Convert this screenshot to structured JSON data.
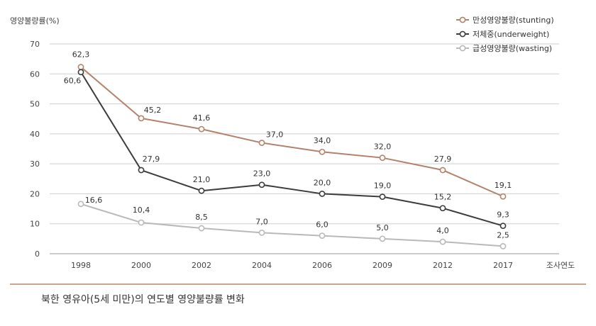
{
  "chart_data": {
    "type": "line",
    "ylabel": "영양불량률(%)",
    "xlabel": "조사연도",
    "categories": [
      "1998",
      "2000",
      "2002",
      "2004",
      "2006",
      "2009",
      "2012",
      "2017"
    ],
    "ylim": [
      0,
      70
    ],
    "yticks": [
      "0",
      "10",
      "20",
      "30",
      "40",
      "50",
      "60",
      "70"
    ],
    "grid": true,
    "legend_position": "top-right",
    "series": [
      {
        "name": "만성영양불량(stunting)",
        "color": "#b4826a",
        "values": [
          62.3,
          45.2,
          41.6,
          37.0,
          34.0,
          32.0,
          27.9,
          19.1
        ],
        "labels": [
          "62,3",
          "45,2",
          "41,6",
          "37,0",
          "34,0",
          "32,0",
          "27,9",
          "19,1"
        ]
      },
      {
        "name": "저체중(underweight)",
        "color": "#3c3c3c",
        "values": [
          60.6,
          27.9,
          21.0,
          23.0,
          20.0,
          19.0,
          15.2,
          9.3
        ],
        "labels": [
          "60,6",
          "27,9",
          "21,0",
          "23,0",
          "20,0",
          "19,0",
          "15,2",
          "9,3"
        ]
      },
      {
        "name": "급성영양불량(wasting)",
        "color": "#b9b9b9",
        "values": [
          16.6,
          10.4,
          8.5,
          7.0,
          6.0,
          5.0,
          4.0,
          2.5
        ],
        "labels": [
          "16,6",
          "10,4",
          "8,5",
          "7,0",
          "6,0",
          "5,0",
          "4,0",
          "2,5"
        ]
      }
    ]
  },
  "caption": "북한 영유아(5세 미만)의 연도별 영양불량률 변화",
  "colors": {
    "rule": "#c8a58d",
    "grid": "#cfcfcf",
    "text": "#333333"
  }
}
